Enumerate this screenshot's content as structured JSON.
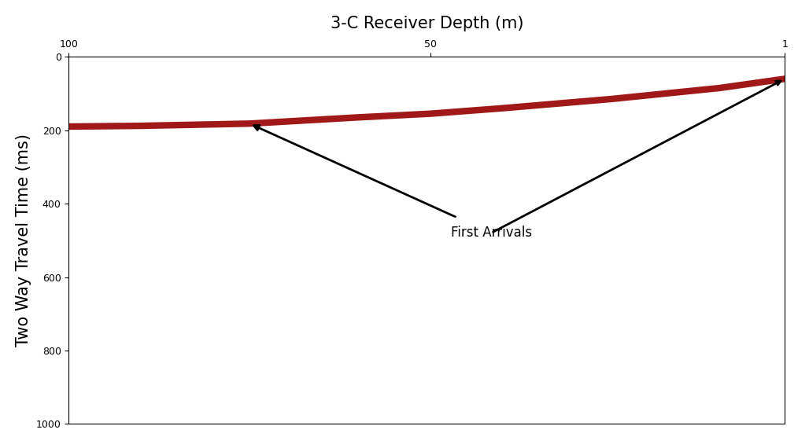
{
  "chart_data": {
    "type": "line",
    "x_label": "3-C Receiver Depth (m)",
    "y_label": "Two Way Travel Time (ms)",
    "annotation": "First Arrivals",
    "x": [
      100,
      90,
      75,
      60,
      50,
      40,
      25,
      10,
      1
    ],
    "values": [
      190,
      188,
      182,
      165,
      155,
      140,
      115,
      85,
      60
    ],
    "color": "#a01818",
    "line_style": "solid",
    "xlim": [
      100,
      1
    ],
    "xticks": [
      100,
      50,
      1
    ],
    "ylim": [
      1000,
      0
    ],
    "yticks": [
      0,
      200,
      400,
      600,
      800,
      1000
    ],
    "grid": false
  }
}
